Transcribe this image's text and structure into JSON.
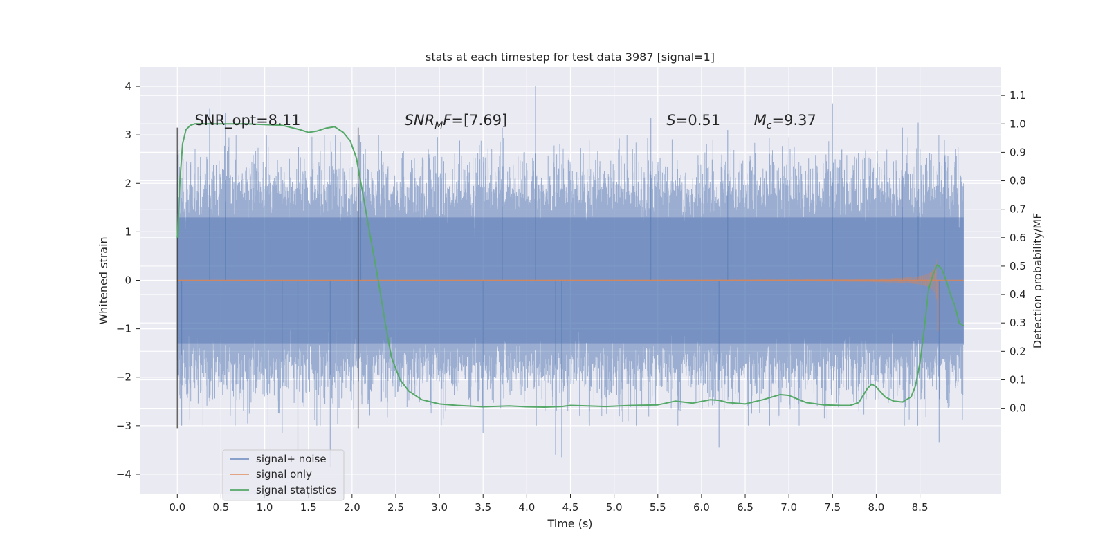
{
  "chart_data": {
    "type": "line",
    "title": "stats at each timestep for test data 3987 [signal=1]",
    "xlabel": "Time (s)",
    "ylabel": "Whitened strain",
    "y2label": "Detection probability/MF",
    "xlim": [
      -0.43,
      9.43
    ],
    "ylim": [
      -4.4,
      4.4
    ],
    "y2lim": [
      -0.3,
      1.2
    ],
    "xticks": [
      0.0,
      0.5,
      1.0,
      1.5,
      2.0,
      2.5,
      3.0,
      3.5,
      4.0,
      4.5,
      5.0,
      5.5,
      6.0,
      6.5,
      7.0,
      7.5,
      8.0,
      8.5
    ],
    "xtick_labels": [
      "0.0",
      "0.5",
      "1.0",
      "1.5",
      "2.0",
      "2.5",
      "3.0",
      "3.5",
      "4.0",
      "4.5",
      "5.0",
      "5.5",
      "6.0",
      "6.5",
      "7.0",
      "7.5",
      "8.0",
      "8.5"
    ],
    "yticks": [
      -4,
      -3,
      -2,
      -1,
      0,
      1,
      2,
      3,
      4
    ],
    "ytick_labels": [
      "−4",
      "−3",
      "−2",
      "−1",
      "0",
      "1",
      "2",
      "3",
      "4"
    ],
    "y2ticks": [
      0.0,
      0.1,
      0.2,
      0.3,
      0.4,
      0.5,
      0.6,
      0.7,
      0.8,
      0.9,
      1.0,
      1.1
    ],
    "y2tick_labels": [
      "0.0",
      "0.1",
      "0.2",
      "0.3",
      "0.4",
      "0.5",
      "0.6",
      "0.7",
      "0.8",
      "0.9",
      "1.0",
      "1.1"
    ],
    "grid": true,
    "legend_position": "bottom-left",
    "vertical_markers": [
      {
        "x": 0.0,
        "y_range": [
          -3.05,
          3.15
        ]
      },
      {
        "x": 2.07,
        "y_range": [
          -3.05,
          3.15
        ]
      }
    ],
    "annotations": [
      {
        "name": "snr-opt",
        "x": 0.2,
        "y": 3.2,
        "text": "SNR_opt=8.11"
      },
      {
        "name": "snr-mf",
        "x": 2.6,
        "y": 3.2,
        "base": "SNR",
        "sub": "M",
        "rest": "F=[7.69]"
      },
      {
        "name": "s-value",
        "x": 5.6,
        "y": 3.2,
        "base": "S",
        "sub": "",
        "rest": "=0.51"
      },
      {
        "name": "chirp-mass",
        "x": 6.6,
        "y": 3.2,
        "base": "M",
        "sub": "c",
        "rest": "=9.37"
      }
    ],
    "series": [
      {
        "name": "signal+ noise",
        "color": "#4c72b0",
        "opacity": 0.5,
        "type": "noise",
        "x_range": [
          0.0,
          9.0
        ],
        "envelope_max": 2.2,
        "outliers": [
          [
            0.05,
            -3.0
          ],
          [
            0.37,
            3.55
          ],
          [
            0.55,
            3.45
          ],
          [
            1.2,
            -3.15
          ],
          [
            1.38,
            -3.6
          ],
          [
            1.75,
            -3.85
          ],
          [
            2.1,
            2.85
          ],
          [
            3.5,
            -3.15
          ],
          [
            3.72,
            3.15
          ],
          [
            4.1,
            4.0
          ],
          [
            4.33,
            -3.6
          ],
          [
            4.4,
            -3.65
          ],
          [
            5.42,
            3.35
          ],
          [
            6.2,
            -3.45
          ],
          [
            6.3,
            3.1
          ],
          [
            7.5,
            3.65
          ],
          [
            8.3,
            3.15
          ],
          [
            8.48,
            3.25
          ],
          [
            8.72,
            -3.35
          ],
          [
            8.78,
            2.9
          ]
        ]
      },
      {
        "name": "signal only",
        "color": "#dd8452",
        "opacity": 0.6,
        "type": "chirp",
        "x_range": [
          0.0,
          9.0
        ],
        "merger_time": 8.7,
        "peak_amplitude": 1.15
      },
      {
        "name": "signal statistics",
        "color": "#55a868",
        "axis": "right",
        "x": [
          0.0,
          0.03,
          0.06,
          0.1,
          0.15,
          0.2,
          0.4,
          0.8,
          1.2,
          1.4,
          1.5,
          1.6,
          1.7,
          1.8,
          1.9,
          1.98,
          2.05,
          2.12,
          2.2,
          2.3,
          2.38,
          2.45,
          2.55,
          2.65,
          2.8,
          3.0,
          3.2,
          3.5,
          3.8,
          4.0,
          4.2,
          4.4,
          4.5,
          4.7,
          4.9,
          5.2,
          5.5,
          5.7,
          5.9,
          6.1,
          6.2,
          6.3,
          6.5,
          6.7,
          6.9,
          7.0,
          7.2,
          7.4,
          7.6,
          7.7,
          7.8,
          7.9,
          7.95,
          8.0,
          8.1,
          8.2,
          8.3,
          8.4,
          8.45,
          8.5,
          8.55,
          8.6,
          8.65,
          8.7,
          8.75,
          8.8,
          8.85,
          8.9,
          8.95,
          9.0
        ],
        "y": [
          0.6,
          0.8,
          0.93,
          0.98,
          0.995,
          1.0,
          1.0,
          1.0,
          0.995,
          0.98,
          0.97,
          0.975,
          0.985,
          0.99,
          0.97,
          0.94,
          0.88,
          0.76,
          0.62,
          0.45,
          0.3,
          0.18,
          0.1,
          0.06,
          0.03,
          0.015,
          0.01,
          0.005,
          0.008,
          0.005,
          0.004,
          0.006,
          0.01,
          0.008,
          0.006,
          0.01,
          0.012,
          0.025,
          0.018,
          0.03,
          0.028,
          0.02,
          0.015,
          0.03,
          0.048,
          0.045,
          0.02,
          0.012,
          0.01,
          0.01,
          0.02,
          0.07,
          0.085,
          0.075,
          0.04,
          0.025,
          0.022,
          0.04,
          0.08,
          0.16,
          0.28,
          0.42,
          0.47,
          0.505,
          0.49,
          0.45,
          0.4,
          0.36,
          0.3,
          0.29
        ]
      }
    ]
  }
}
